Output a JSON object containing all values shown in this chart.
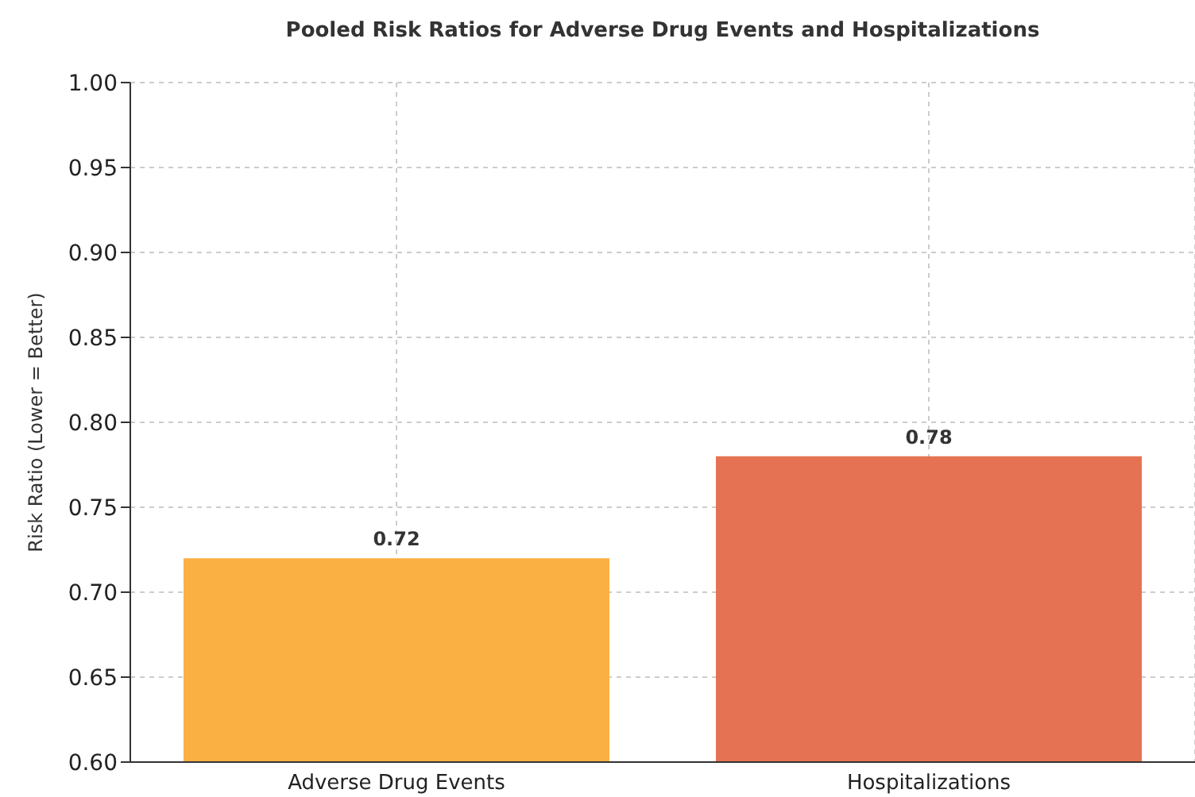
{
  "chart_data": {
    "type": "bar",
    "title": "Pooled Risk Ratios for Adverse Drug Events and Hospitalizations",
    "ylabel": "Risk Ratio (Lower = Better)",
    "categories": [
      "Adverse Drug Events",
      "Hospitalizations"
    ],
    "values": [
      0.72,
      0.78
    ],
    "colors": [
      "#fbb044",
      "#e57353"
    ],
    "ylim": [
      0.6,
      1.0
    ],
    "yticks": [
      {
        "value": 0.6,
        "label": "0.60"
      },
      {
        "value": 0.65,
        "label": "0.65"
      },
      {
        "value": 0.7,
        "label": "0.70"
      },
      {
        "value": 0.75,
        "label": "0.75"
      },
      {
        "value": 0.8,
        "label": "0.80"
      },
      {
        "value": 0.85,
        "label": "0.85"
      },
      {
        "value": 0.9,
        "label": "0.90"
      },
      {
        "value": 0.95,
        "label": "0.95"
      },
      {
        "value": 1.0,
        "label": "1.00"
      }
    ],
    "grid": true,
    "data_labels": true
  }
}
